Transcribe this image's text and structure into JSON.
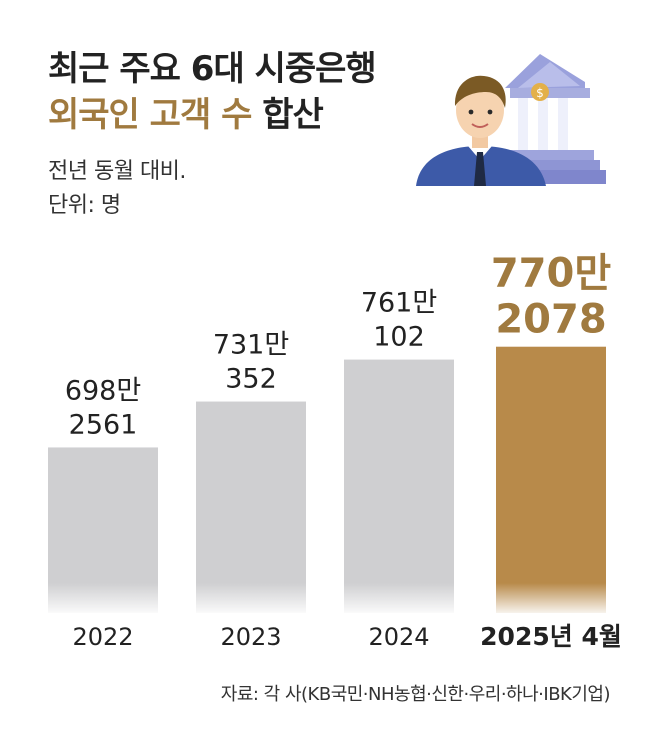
{
  "header": {
    "title_line1": "최근 주요 6대 시중은행",
    "title_line2_accent": "외국인 고객 수",
    "title_line2_rest": "합산",
    "subtitle_line1": "전년 동월 대비.",
    "subtitle_line2": "단위: 명"
  },
  "colors": {
    "bar_default": "#cfcfd1",
    "bar_highlight": "#b88a4a",
    "accent_text": "#a07a3f",
    "text": "#222222"
  },
  "chart_data": {
    "type": "bar",
    "title": "최근 주요 6대 시중은행 외국인 고객 수 합산",
    "unit": "명",
    "categories": [
      "2022",
      "2023",
      "2024",
      "2025년 4월"
    ],
    "values": [
      6982561,
      7310352,
      7610102,
      7702078
    ],
    "value_labels": [
      [
        "698만",
        "2561"
      ],
      [
        "731만",
        "352"
      ],
      [
        "761만",
        "102"
      ],
      [
        "770만",
        "2078"
      ]
    ],
    "highlight_index": 3,
    "ylim": [
      5800000,
      7750000
    ],
    "grid": false,
    "legend": "none"
  },
  "source": "자료: 각 사(KB국민·NH농협·신한·우리·하나·IBK기업)",
  "illustration": {
    "icons": [
      "person-icon",
      "bank-icon",
      "coin-icon"
    ]
  }
}
